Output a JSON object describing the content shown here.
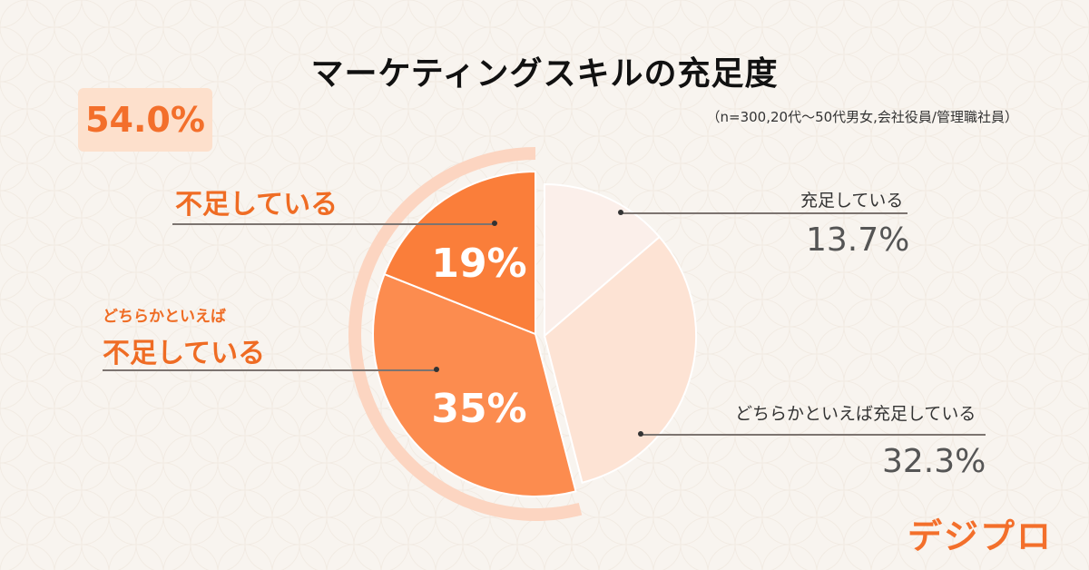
{
  "title": "マーケティングスキルの充足度",
  "note": "（n=300,20代〜50代男女,会社役員/管理職社員）",
  "total_badge": "54.0%",
  "labels": {
    "insufficient": "不足している",
    "somewhat_insufficient_line1": "どちらかといえば",
    "somewhat_insufficient_line2": "不足している",
    "sufficient": "充足している",
    "sufficient_pct": "13.7%",
    "somewhat_sufficient": "どちらかといえば充足している",
    "somewhat_sufficient_pct": "32.3%",
    "insufficient_pct": "19%",
    "somewhat_insufficient_pct": "35%"
  },
  "logo": "デジプロ",
  "colors": {
    "insufficient": "#fa7e3a",
    "somewhat_insufficient": "#fc8c4f",
    "sufficient": "#fbefea",
    "somewhat_sufficient": "#fde3d4",
    "arc": "#fcd5c1",
    "accent": "#f36f2b"
  },
  "chart_data": {
    "type": "pie",
    "title": "マーケティングスキルの充足度",
    "slices": [
      {
        "label": "充足している",
        "value": 13.7
      },
      {
        "label": "どちらかといえば充足している",
        "value": 32.3
      },
      {
        "label": "どちらかといえば不足している",
        "value": 35
      },
      {
        "label": "不足している",
        "value": 19
      }
    ],
    "highlight_total": {
      "label": "不足している",
      "value": 54.0
    }
  }
}
